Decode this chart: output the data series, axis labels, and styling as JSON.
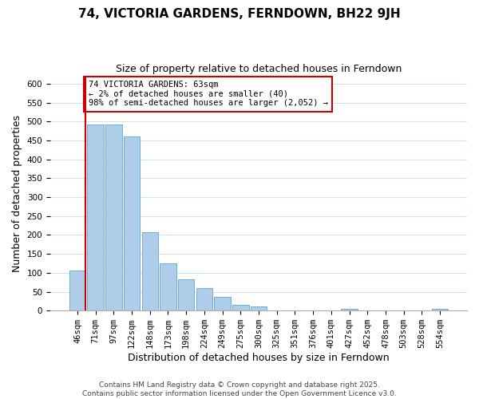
{
  "title": "74, VICTORIA GARDENS, FERNDOWN, BH22 9JH",
  "subtitle": "Size of property relative to detached houses in Ferndown",
  "xlabel": "Distribution of detached houses by size in Ferndown",
  "ylabel": "Number of detached properties",
  "bar_color": "#aecde8",
  "bar_edge_color": "#6aaed6",
  "categories": [
    "46sqm",
    "71sqm",
    "97sqm",
    "122sqm",
    "148sqm",
    "173sqm",
    "198sqm",
    "224sqm",
    "249sqm",
    "275sqm",
    "300sqm",
    "325sqm",
    "351sqm",
    "376sqm",
    "401sqm",
    "427sqm",
    "452sqm",
    "478sqm",
    "503sqm",
    "528sqm",
    "554sqm"
  ],
  "values": [
    107,
    493,
    493,
    460,
    207,
    125,
    82,
    59,
    37,
    16,
    11,
    0,
    0,
    0,
    0,
    5,
    0,
    0,
    0,
    0,
    5
  ],
  "ylim": [
    0,
    620
  ],
  "yticks": [
    0,
    50,
    100,
    150,
    200,
    250,
    300,
    350,
    400,
    450,
    500,
    550,
    600
  ],
  "vline_color": "#cc0000",
  "annotation_title": "74 VICTORIA GARDENS: 63sqm",
  "annotation_line2": "← 2% of detached houses are smaller (40)",
  "annotation_line3": "98% of semi-detached houses are larger (2,052) →",
  "annotation_box_color": "#cc0000",
  "footer_line1": "Contains HM Land Registry data © Crown copyright and database right 2025.",
  "footer_line2": "Contains public sector information licensed under the Open Government Licence v3.0.",
  "grid_color": "#d0e4f0",
  "title_fontsize": 11,
  "subtitle_fontsize": 9,
  "xlabel_fontsize": 9,
  "ylabel_fontsize": 9,
  "tick_fontsize": 7.5,
  "footer_fontsize": 6.5
}
